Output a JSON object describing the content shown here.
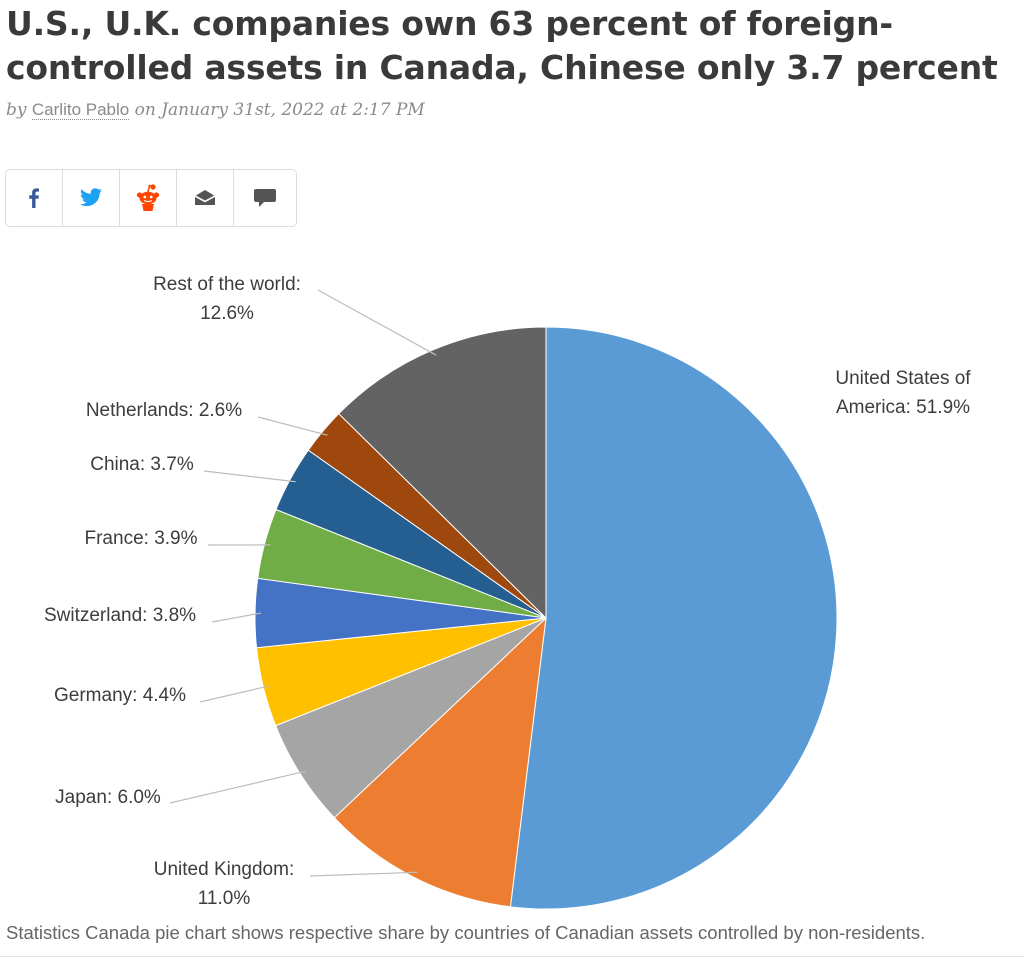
{
  "article": {
    "headline": "U.S., U.K. companies own 63 percent of foreign-controlled assets in Canada, Chinese only 3.7 percent",
    "byline_prefix": "by",
    "author": "Carlito Pablo",
    "byline_on": "on",
    "date": "January 31st, 2022 at 2:17 PM",
    "caption": "Statistics Canada pie chart shows respective share by countries of Canadian assets controlled by non-residents."
  },
  "share_buttons": [
    {
      "icon": "facebook-icon"
    },
    {
      "icon": "twitter-icon"
    },
    {
      "icon": "reddit-icon"
    },
    {
      "icon": "email-icon"
    },
    {
      "icon": "comment-icon"
    }
  ],
  "colors": {
    "facebook": "#3b5998",
    "twitter": "#1da1f2",
    "reddit": "#ff4500",
    "icon_gray": "#555555"
  },
  "chart_data": {
    "type": "pie",
    "slices": [
      {
        "label": [
          "United States of",
          "America: 51.9%"
        ],
        "value": 51.9,
        "color": "#5b9bd5"
      },
      {
        "label": [
          "United Kingdom:",
          "11.0%"
        ],
        "value": 11.0,
        "color": "#ed7d31"
      },
      {
        "label": [
          "Japan: 6.0%"
        ],
        "value": 6.0,
        "color": "#a5a5a5"
      },
      {
        "label": [
          "Germany: 4.4%"
        ],
        "value": 4.4,
        "color": "#ffc000"
      },
      {
        "label": [
          "Switzerland: 3.8%"
        ],
        "value": 3.8,
        "color": "#4472c4"
      },
      {
        "label": [
          "France: 3.9%"
        ],
        "value": 3.9,
        "color": "#70ad47"
      },
      {
        "label": [
          "China: 3.7%"
        ],
        "value": 3.7,
        "color": "#255e91"
      },
      {
        "label": [
          "Netherlands: 2.6%"
        ],
        "value": 2.6,
        "color": "#9e480e"
      },
      {
        "label": [
          "Rest of the world:",
          "12.6%"
        ],
        "value": 12.6,
        "color": "#636363"
      }
    ]
  }
}
